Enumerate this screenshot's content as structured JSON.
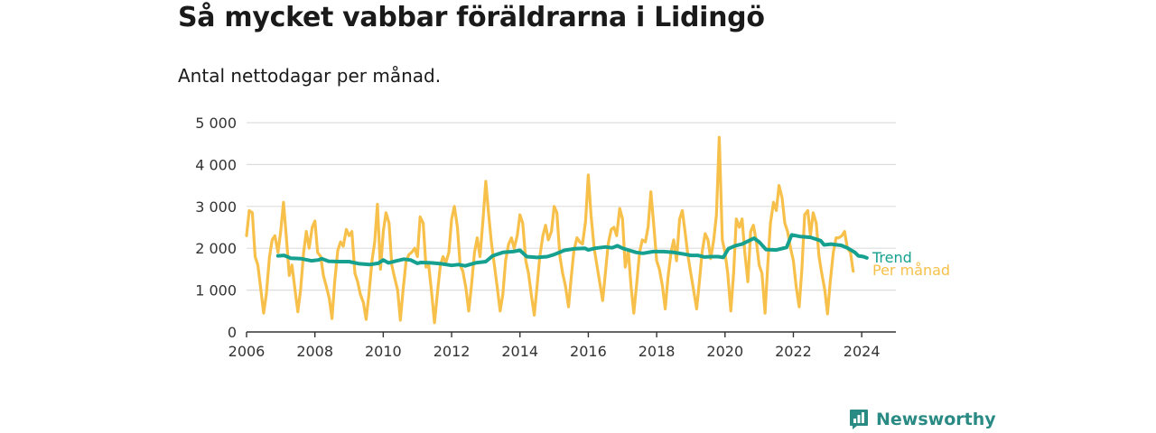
{
  "header": {
    "title": "Så mycket vabbar föräldrarna i Lidingö",
    "subtitle": "Antal nettodagar per månad."
  },
  "brand": {
    "name": "Newsworthy",
    "icon": "bar-chart-badge-icon",
    "color": "#2a8a84"
  },
  "colors": {
    "monthly": "#f7c04a",
    "trend": "#16a090",
    "grid": "#dddddd",
    "axis": "#333333"
  },
  "chart_data": {
    "type": "line",
    "title": "Så mycket vabbar föräldrarna i Lidingö",
    "subtitle": "Antal nettodagar per månad.",
    "ylim": [
      0,
      5000
    ],
    "yticks": [
      0,
      1000,
      2000,
      3000,
      4000,
      5000
    ],
    "ytick_labels": [
      "0",
      "1 000",
      "2 000",
      "3 000",
      "4 000",
      "5 000"
    ],
    "xlim": [
      2006,
      2025
    ],
    "xticks": [
      2006,
      2008,
      2010,
      2012,
      2014,
      2016,
      2018,
      2020,
      2022,
      2024
    ],
    "xtick_labels": [
      "2006",
      "2008",
      "2010",
      "2012",
      "2014",
      "2016",
      "2018",
      "2020",
      "2022",
      "2024"
    ],
    "grid": true,
    "legend": "inline-right",
    "series": [
      {
        "name": "Per månad",
        "color": "#f7c04a",
        "points": [
          [
            2006.0,
            2300
          ],
          [
            2006.08,
            2900
          ],
          [
            2006.17,
            2850
          ],
          [
            2006.25,
            1800
          ],
          [
            2006.33,
            1600
          ],
          [
            2006.42,
            1000
          ],
          [
            2006.5,
            450
          ],
          [
            2006.58,
            900
          ],
          [
            2006.67,
            1800
          ],
          [
            2006.75,
            2200
          ],
          [
            2006.83,
            2300
          ],
          [
            2006.92,
            1900
          ],
          [
            2007.0,
            2400
          ],
          [
            2007.08,
            3100
          ],
          [
            2007.17,
            2200
          ],
          [
            2007.25,
            1350
          ],
          [
            2007.33,
            1600
          ],
          [
            2007.42,
            1000
          ],
          [
            2007.5,
            480
          ],
          [
            2007.58,
            1000
          ],
          [
            2007.67,
            1900
          ],
          [
            2007.75,
            2400
          ],
          [
            2007.83,
            2000
          ],
          [
            2007.92,
            2500
          ],
          [
            2008.0,
            2650
          ],
          [
            2008.08,
            1900
          ],
          [
            2008.17,
            1800
          ],
          [
            2008.25,
            1350
          ],
          [
            2008.33,
            1100
          ],
          [
            2008.42,
            800
          ],
          [
            2008.5,
            320
          ],
          [
            2008.58,
            1200
          ],
          [
            2008.67,
            1950
          ],
          [
            2008.75,
            2150
          ],
          [
            2008.83,
            2050
          ],
          [
            2008.92,
            2450
          ],
          [
            2009.0,
            2300
          ],
          [
            2009.08,
            2400
          ],
          [
            2009.17,
            1400
          ],
          [
            2009.25,
            1200
          ],
          [
            2009.33,
            900
          ],
          [
            2009.42,
            700
          ],
          [
            2009.5,
            300
          ],
          [
            2009.58,
            900
          ],
          [
            2009.67,
            1700
          ],
          [
            2009.75,
            2150
          ],
          [
            2009.83,
            3050
          ],
          [
            2009.92,
            1500
          ],
          [
            2010.0,
            2400
          ],
          [
            2010.08,
            2850
          ],
          [
            2010.17,
            2600
          ],
          [
            2010.25,
            1600
          ],
          [
            2010.33,
            1300
          ],
          [
            2010.42,
            1000
          ],
          [
            2010.5,
            280
          ],
          [
            2010.58,
            1000
          ],
          [
            2010.67,
            1700
          ],
          [
            2010.75,
            1850
          ],
          [
            2010.83,
            1900
          ],
          [
            2010.92,
            2000
          ],
          [
            2011.0,
            1800
          ],
          [
            2011.08,
            2750
          ],
          [
            2011.17,
            2600
          ],
          [
            2011.25,
            1550
          ],
          [
            2011.33,
            1600
          ],
          [
            2011.42,
            900
          ],
          [
            2011.5,
            220
          ],
          [
            2011.58,
            900
          ],
          [
            2011.67,
            1600
          ],
          [
            2011.75,
            1800
          ],
          [
            2011.83,
            1650
          ],
          [
            2011.92,
            1900
          ],
          [
            2012.0,
            2700
          ],
          [
            2012.08,
            3000
          ],
          [
            2012.17,
            2500
          ],
          [
            2012.25,
            1600
          ],
          [
            2012.33,
            1450
          ],
          [
            2012.42,
            1050
          ],
          [
            2012.5,
            500
          ],
          [
            2012.58,
            1100
          ],
          [
            2012.67,
            1900
          ],
          [
            2012.75,
            2250
          ],
          [
            2012.83,
            1800
          ],
          [
            2012.92,
            2700
          ],
          [
            2013.0,
            3600
          ],
          [
            2013.08,
            2850
          ],
          [
            2013.17,
            2100
          ],
          [
            2013.25,
            1600
          ],
          [
            2013.33,
            1100
          ],
          [
            2013.42,
            500
          ],
          [
            2013.5,
            900
          ],
          [
            2013.58,
            1700
          ],
          [
            2013.67,
            2100
          ],
          [
            2013.75,
            2250
          ],
          [
            2013.83,
            2000
          ],
          [
            2013.92,
            2300
          ],
          [
            2014.0,
            2800
          ],
          [
            2014.08,
            2600
          ],
          [
            2014.17,
            1700
          ],
          [
            2014.25,
            1400
          ],
          [
            2014.33,
            900
          ],
          [
            2014.42,
            400
          ],
          [
            2014.5,
            1100
          ],
          [
            2014.58,
            1800
          ],
          [
            2014.67,
            2300
          ],
          [
            2014.75,
            2550
          ],
          [
            2014.83,
            2200
          ],
          [
            2014.92,
            2400
          ],
          [
            2015.0,
            3000
          ],
          [
            2015.08,
            2850
          ],
          [
            2015.17,
            1800
          ],
          [
            2015.25,
            1400
          ],
          [
            2015.33,
            1100
          ],
          [
            2015.42,
            600
          ],
          [
            2015.5,
            1300
          ],
          [
            2015.58,
            1950
          ],
          [
            2015.67,
            2250
          ],
          [
            2015.75,
            2150
          ],
          [
            2015.83,
            2100
          ],
          [
            2015.92,
            2650
          ],
          [
            2016.0,
            3750
          ],
          [
            2016.08,
            2800
          ],
          [
            2016.17,
            2000
          ],
          [
            2016.25,
            1600
          ],
          [
            2016.33,
            1200
          ],
          [
            2016.42,
            750
          ],
          [
            2016.5,
            1400
          ],
          [
            2016.58,
            2100
          ],
          [
            2016.67,
            2450
          ],
          [
            2016.75,
            2500
          ],
          [
            2016.83,
            2300
          ],
          [
            2016.92,
            2950
          ],
          [
            2017.0,
            2700
          ],
          [
            2017.08,
            1550
          ],
          [
            2017.17,
            1950
          ],
          [
            2017.25,
            1100
          ],
          [
            2017.33,
            450
          ],
          [
            2017.42,
            1200
          ],
          [
            2017.5,
            1900
          ],
          [
            2017.58,
            2200
          ],
          [
            2017.67,
            2150
          ],
          [
            2017.75,
            2500
          ],
          [
            2017.83,
            3350
          ],
          [
            2017.92,
            2500
          ],
          [
            2018.0,
            1700
          ],
          [
            2018.08,
            1500
          ],
          [
            2018.17,
            1100
          ],
          [
            2018.25,
            550
          ],
          [
            2018.33,
            1300
          ],
          [
            2018.42,
            1900
          ],
          [
            2018.5,
            2200
          ],
          [
            2018.58,
            1700
          ],
          [
            2018.67,
            2700
          ],
          [
            2018.75,
            2900
          ],
          [
            2018.83,
            2400
          ],
          [
            2018.92,
            1800
          ],
          [
            2019.0,
            1400
          ],
          [
            2019.08,
            1000
          ],
          [
            2019.17,
            550
          ],
          [
            2019.25,
            1200
          ],
          [
            2019.33,
            1900
          ],
          [
            2019.42,
            2350
          ],
          [
            2019.5,
            2200
          ],
          [
            2019.58,
            1750
          ],
          [
            2019.67,
            2200
          ],
          [
            2019.75,
            2800
          ],
          [
            2019.83,
            4650
          ],
          [
            2019.92,
            2200
          ],
          [
            2020.0,
            1900
          ],
          [
            2020.08,
            1400
          ],
          [
            2020.17,
            500
          ],
          [
            2020.25,
            1400
          ],
          [
            2020.33,
            2700
          ],
          [
            2020.42,
            2500
          ],
          [
            2020.5,
            2700
          ],
          [
            2020.58,
            1900
          ],
          [
            2020.67,
            1200
          ],
          [
            2020.75,
            2400
          ],
          [
            2020.83,
            2550
          ],
          [
            2020.92,
            2150
          ],
          [
            2021.0,
            1600
          ],
          [
            2021.08,
            1400
          ],
          [
            2021.17,
            450
          ],
          [
            2021.25,
            1600
          ],
          [
            2021.33,
            2600
          ],
          [
            2021.42,
            3100
          ],
          [
            2021.5,
            2900
          ],
          [
            2021.58,
            3500
          ],
          [
            2021.67,
            3200
          ],
          [
            2021.75,
            2600
          ],
          [
            2021.83,
            2400
          ],
          [
            2021.92,
            2000
          ],
          [
            2022.0,
            1700
          ],
          [
            2022.08,
            1100
          ],
          [
            2022.17,
            600
          ],
          [
            2022.25,
            1500
          ],
          [
            2022.33,
            2800
          ],
          [
            2022.42,
            2900
          ],
          [
            2022.5,
            2300
          ],
          [
            2022.58,
            2850
          ],
          [
            2022.67,
            2600
          ],
          [
            2022.75,
            1800
          ],
          [
            2022.83,
            1400
          ],
          [
            2022.92,
            1000
          ],
          [
            2023.0,
            430
          ],
          [
            2023.08,
            1200
          ],
          [
            2023.17,
            1900
          ],
          [
            2023.25,
            2250
          ],
          [
            2023.33,
            2250
          ],
          [
            2023.42,
            2300
          ],
          [
            2023.5,
            2400
          ],
          [
            2023.58,
            2000
          ],
          [
            2023.67,
            1900
          ],
          [
            2023.75,
            1450
          ]
        ]
      },
      {
        "name": "Trend",
        "color": "#16a090",
        "points": [
          [
            2006.92,
            1820
          ],
          [
            2007.1,
            1830
          ],
          [
            2007.3,
            1760
          ],
          [
            2007.6,
            1750
          ],
          [
            2007.9,
            1700
          ],
          [
            2008.1,
            1720
          ],
          [
            2008.2,
            1750
          ],
          [
            2008.4,
            1690
          ],
          [
            2008.7,
            1680
          ],
          [
            2009.0,
            1680
          ],
          [
            2009.3,
            1630
          ],
          [
            2009.6,
            1610
          ],
          [
            2009.85,
            1640
          ],
          [
            2010.0,
            1720
          ],
          [
            2010.15,
            1650
          ],
          [
            2010.4,
            1700
          ],
          [
            2010.6,
            1740
          ],
          [
            2010.8,
            1720
          ],
          [
            2011.0,
            1640
          ],
          [
            2011.1,
            1660
          ],
          [
            2011.4,
            1650
          ],
          [
            2011.7,
            1630
          ],
          [
            2012.0,
            1590
          ],
          [
            2012.2,
            1610
          ],
          [
            2012.4,
            1580
          ],
          [
            2012.7,
            1650
          ],
          [
            2013.0,
            1680
          ],
          [
            2013.2,
            1820
          ],
          [
            2013.5,
            1900
          ],
          [
            2013.8,
            1920
          ],
          [
            2014.0,
            1950
          ],
          [
            2014.2,
            1800
          ],
          [
            2014.5,
            1780
          ],
          [
            2014.8,
            1800
          ],
          [
            2015.0,
            1850
          ],
          [
            2015.3,
            1950
          ],
          [
            2015.6,
            1990
          ],
          [
            2015.9,
            2000
          ],
          [
            2016.0,
            1960
          ],
          [
            2016.2,
            2000
          ],
          [
            2016.5,
            2030
          ],
          [
            2016.7,
            2010
          ],
          [
            2016.85,
            2060
          ],
          [
            2017.0,
            2000
          ],
          [
            2017.2,
            1950
          ],
          [
            2017.4,
            1900
          ],
          [
            2017.6,
            1880
          ],
          [
            2017.9,
            1920
          ],
          [
            2018.2,
            1920
          ],
          [
            2018.5,
            1900
          ],
          [
            2018.8,
            1860
          ],
          [
            2019.0,
            1830
          ],
          [
            2019.2,
            1830
          ],
          [
            2019.4,
            1790
          ],
          [
            2019.6,
            1800
          ],
          [
            2019.8,
            1800
          ],
          [
            2019.95,
            1780
          ],
          [
            2020.1,
            1990
          ],
          [
            2020.3,
            2060
          ],
          [
            2020.5,
            2100
          ],
          [
            2020.7,
            2180
          ],
          [
            2020.85,
            2240
          ],
          [
            2021.0,
            2150
          ],
          [
            2021.2,
            1970
          ],
          [
            2021.5,
            1960
          ],
          [
            2021.8,
            2020
          ],
          [
            2021.95,
            2320
          ],
          [
            2022.2,
            2280
          ],
          [
            2022.5,
            2260
          ],
          [
            2022.8,
            2180
          ],
          [
            2022.9,
            2080
          ],
          [
            2023.1,
            2100
          ],
          [
            2023.4,
            2070
          ],
          [
            2023.6,
            2000
          ],
          [
            2023.8,
            1900
          ],
          [
            2023.9,
            1820
          ],
          [
            2024.05,
            1800
          ],
          [
            2024.15,
            1770
          ]
        ]
      }
    ]
  }
}
